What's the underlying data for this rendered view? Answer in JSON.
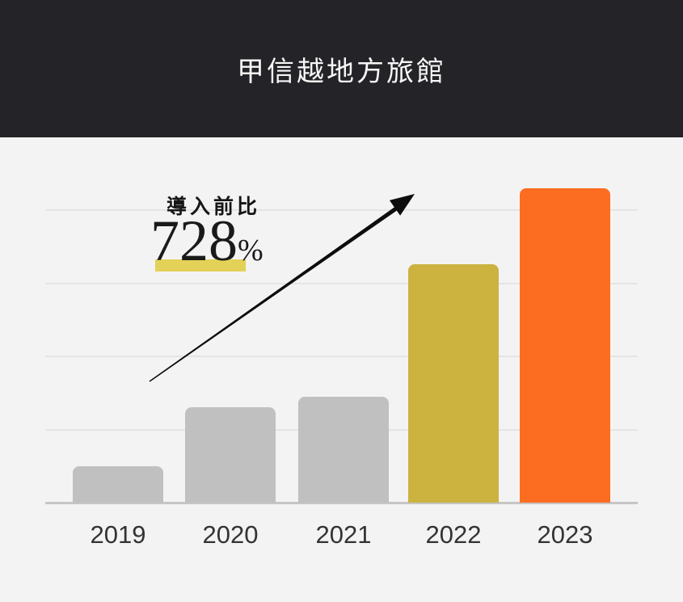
{
  "header": {
    "title": "甲信越地方旅館"
  },
  "chart_data": {
    "type": "bar",
    "title": "甲信越地方旅館",
    "categories": [
      "2019",
      "2020",
      "2021",
      "2022",
      "2023"
    ],
    "values": [
      45,
      118,
      131,
      295,
      389
    ],
    "value_note": "relative magnitudes only — chart shows no numeric y-axis; values proportional to bar heights",
    "series_colors": [
      "#c0c0c0",
      "#c0c0c0",
      "#c0c0c0",
      "#ccb340",
      "#fc6d21"
    ],
    "xlabel": "",
    "ylabel": "",
    "grid": "horizontal",
    "legend": "none",
    "annotation": {
      "label": "導入前比",
      "value": "728",
      "unit": "%"
    }
  },
  "colors": {
    "header_bg": "#242428",
    "page_bg": "#f3f3f4",
    "gridline": "#e4e4e4",
    "axis": "#c6c6c6",
    "bar_gray": "#c0c0c0",
    "bar_yellow": "#ccb340",
    "bar_orange": "#fc6d21",
    "highlight": "#e3d158",
    "arrow": "#0d0d0d"
  }
}
